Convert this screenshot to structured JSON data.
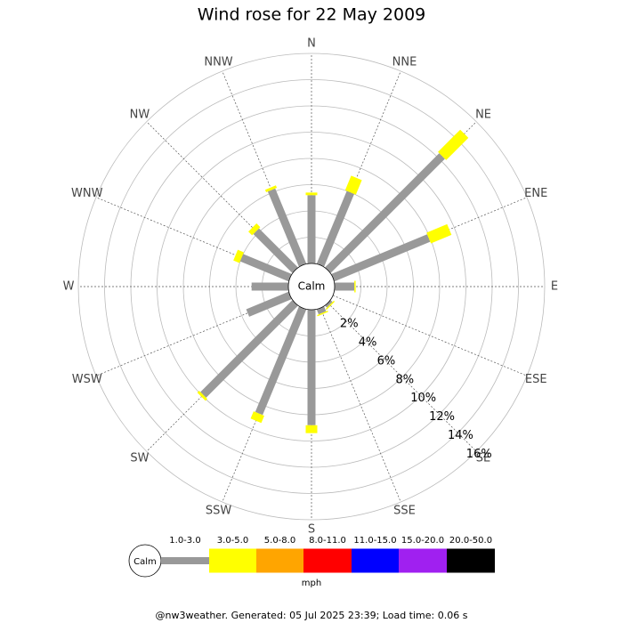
{
  "chart_data": {
    "type": "wind_rose",
    "title": "Wind rose for 22 May 2009",
    "calm_label": "Calm",
    "categories": [
      "N",
      "NNE",
      "NE",
      "ENE",
      "E",
      "ESE",
      "SE",
      "SSE",
      "S",
      "SSW",
      "SW",
      "WSW",
      "W",
      "WNW",
      "NW",
      "NNW"
    ],
    "series": [
      {
        "name": "1.0-3.0",
        "color": "#999999",
        "values": [
          5.2,
          6.0,
          12.3,
          7.9,
          1.5,
          0,
          0.2,
          0.4,
          8.8,
          8.7,
          9.9,
          3.5,
          2.8,
          4.0,
          4.2,
          6.2
        ]
      },
      {
        "name": "3.0-5.0",
        "color": "#ffff00",
        "values": [
          0.2,
          1.2,
          2.4,
          1.7,
          0.1,
          0,
          0.1,
          0.1,
          0.6,
          0.6,
          0.2,
          0,
          0,
          0.5,
          0.4,
          0.2
        ]
      },
      {
        "name": "5.0-8.0",
        "color": "#ffa500",
        "values": [
          0,
          0,
          0,
          0,
          0,
          0,
          0,
          0,
          0,
          0,
          0,
          0,
          0,
          0,
          0,
          0
        ]
      },
      {
        "name": "8.0-11.0",
        "color": "#ff0000",
        "values": [
          0,
          0,
          0,
          0,
          0,
          0,
          0,
          0,
          0,
          0,
          0,
          0,
          0,
          0,
          0,
          0
        ]
      },
      {
        "name": "11.0-15.0",
        "color": "#0000ff",
        "values": [
          0,
          0,
          0,
          0,
          0,
          0,
          0,
          0,
          0,
          0,
          0,
          0,
          0,
          0,
          0,
          0
        ]
      },
      {
        "name": "15.0-20.0",
        "color": "#a020f0",
        "values": [
          0,
          0,
          0,
          0,
          0,
          0,
          0,
          0,
          0,
          0,
          0,
          0,
          0,
          0,
          0,
          0
        ]
      },
      {
        "name": "20.0-50.0",
        "color": "#000000",
        "values": [
          0,
          0,
          0,
          0,
          0,
          0,
          0,
          0,
          0,
          0,
          0,
          0,
          0,
          0,
          0,
          0
        ]
      }
    ],
    "rlim": [
      0,
      16
    ],
    "rticks": [
      {
        "value": 2,
        "label": "2%"
      },
      {
        "value": 4,
        "label": "4%"
      },
      {
        "value": 6,
        "label": "6%"
      },
      {
        "value": 8,
        "label": "8%"
      },
      {
        "value": 10,
        "label": "10%"
      },
      {
        "value": 12,
        "label": "12%"
      },
      {
        "value": 14,
        "label": "14%"
      },
      {
        "value": 16,
        "label": "16%"
      }
    ],
    "unit": "mph",
    "footer": "@nw3weather. Generated: 05 Jul 2025 23:39; Load time: 0.06 s"
  }
}
